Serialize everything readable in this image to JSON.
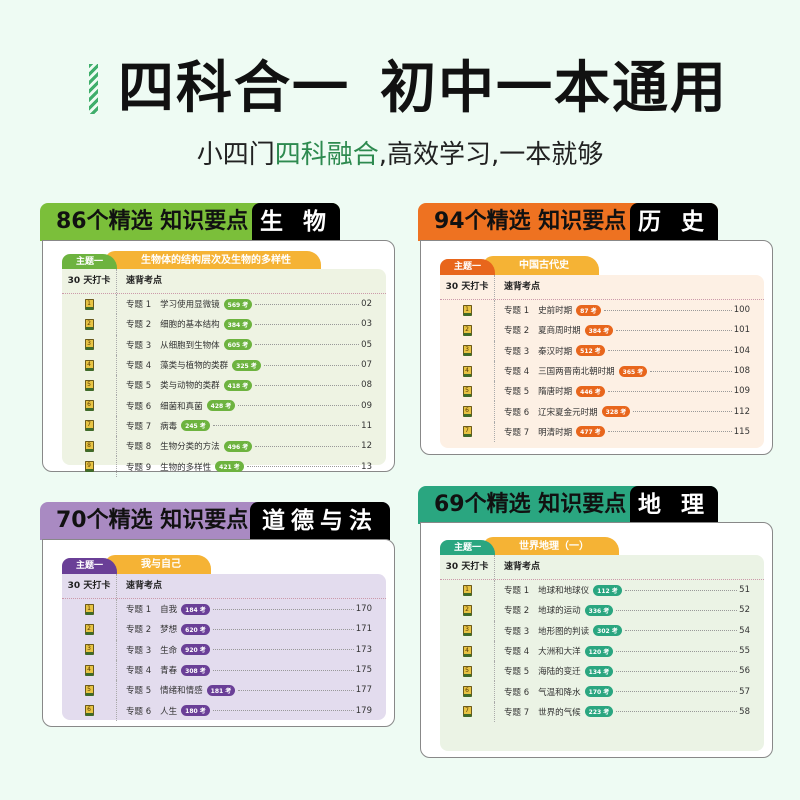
{
  "header": {
    "title_part1": "四科合一",
    "title_part2": "初中一本通用",
    "subtitle_pre": "小四门",
    "subtitle_highlight": "四科融合",
    "subtitle_post": ",高效学习,一本就够"
  },
  "common": {
    "theme_tab": "主题一",
    "col_day": "30 天打卡",
    "col_points": "速背考点",
    "topic_prefix": "专题",
    "badge_suffix": "考"
  },
  "cards": [
    {
      "count_label": "86个精选 知识要点",
      "subject": "生 物",
      "theme_title": "生物体的结构层次及生物的多样性",
      "color": "#7bbf3a",
      "tab_color": "#6db33f",
      "panel_color": "#eef3e3",
      "badge_color": "#6db33f",
      "items": [
        {
          "n": "1",
          "name": "学习使用显微镜",
          "badge": "569",
          "page": "02"
        },
        {
          "n": "2",
          "name": "细胞的基本结构",
          "badge": "384",
          "page": "03"
        },
        {
          "n": "3",
          "name": "从细胞到生物体",
          "badge": "605",
          "page": "05"
        },
        {
          "n": "4",
          "name": "藻类与植物的类群",
          "badge": "325",
          "page": "07"
        },
        {
          "n": "5",
          "name": "类与动物的类群",
          "badge": "418",
          "page": "08"
        },
        {
          "n": "6",
          "name": "细菌和真菌",
          "badge": "428",
          "page": "09"
        },
        {
          "n": "7",
          "name": "病毒",
          "badge": "245",
          "page": "11"
        },
        {
          "n": "8",
          "name": "生物分类的方法",
          "badge": "496",
          "page": "12"
        },
        {
          "n": "9",
          "name": "生物的多样性",
          "badge": "421",
          "page": "13"
        }
      ]
    },
    {
      "count_label": "94个精选 知识要点",
      "subject": "历 史",
      "theme_title": "中国古代史",
      "color": "#ee7221",
      "tab_color": "#e8661c",
      "panel_color": "#fdf0e4",
      "badge_color": "#e8661c",
      "items": [
        {
          "n": "1",
          "name": "史前时期",
          "badge": "87",
          "page": "100"
        },
        {
          "n": "2",
          "name": "夏商周时期",
          "badge": "384",
          "page": "101"
        },
        {
          "n": "3",
          "name": "秦汉时期",
          "badge": "512",
          "page": "104"
        },
        {
          "n": "4",
          "name": "三国两晋南北朝时期",
          "badge": "365",
          "page": "108"
        },
        {
          "n": "5",
          "name": "隋唐时期",
          "badge": "446",
          "page": "109"
        },
        {
          "n": "6",
          "name": "辽宋夏金元时期",
          "badge": "328",
          "page": "112"
        },
        {
          "n": "7",
          "name": "明清时期",
          "badge": "477",
          "page": "115"
        }
      ]
    },
    {
      "count_label": "70个精选 知识要点",
      "subject": "道德与法治",
      "theme_title": "我与自己",
      "color": "#a98ac2",
      "tab_color": "#6a3f97",
      "panel_color": "#e3dcee",
      "badge_color": "#6a3f97",
      "items": [
        {
          "n": "1",
          "name": "自我",
          "badge": "184",
          "page": "170"
        },
        {
          "n": "2",
          "name": "梦想",
          "badge": "620",
          "page": "171"
        },
        {
          "n": "3",
          "name": "生命",
          "badge": "920",
          "page": "173"
        },
        {
          "n": "4",
          "name": "青春",
          "badge": "308",
          "page": "175"
        },
        {
          "n": "5",
          "name": "情绪和情感",
          "badge": "181",
          "page": "177"
        },
        {
          "n": "6",
          "name": "人生",
          "badge": "180",
          "page": "179"
        }
      ]
    },
    {
      "count_label": "69个精选 知识要点",
      "subject": "地 理",
      "theme_title": "世界地理（一）",
      "color": "#2aa680",
      "tab_color": "#2aa680",
      "panel_color": "#ebf3e5",
      "badge_color": "#2aa680",
      "items": [
        {
          "n": "1",
          "name": "地球和地球仪",
          "badge": "112",
          "page": "51"
        },
        {
          "n": "2",
          "name": "地球的运动",
          "badge": "336",
          "page": "52"
        },
        {
          "n": "3",
          "name": "地形图的判读",
          "badge": "302",
          "page": "54"
        },
        {
          "n": "4",
          "name": "大洲和大洋",
          "badge": "120",
          "page": "55"
        },
        {
          "n": "5",
          "name": "海陆的变迁",
          "badge": "134",
          "page": "56"
        },
        {
          "n": "6",
          "name": "气温和降水",
          "badge": "170",
          "page": "57"
        },
        {
          "n": "7",
          "name": "世界的气候",
          "badge": "223",
          "page": "58"
        }
      ]
    }
  ]
}
